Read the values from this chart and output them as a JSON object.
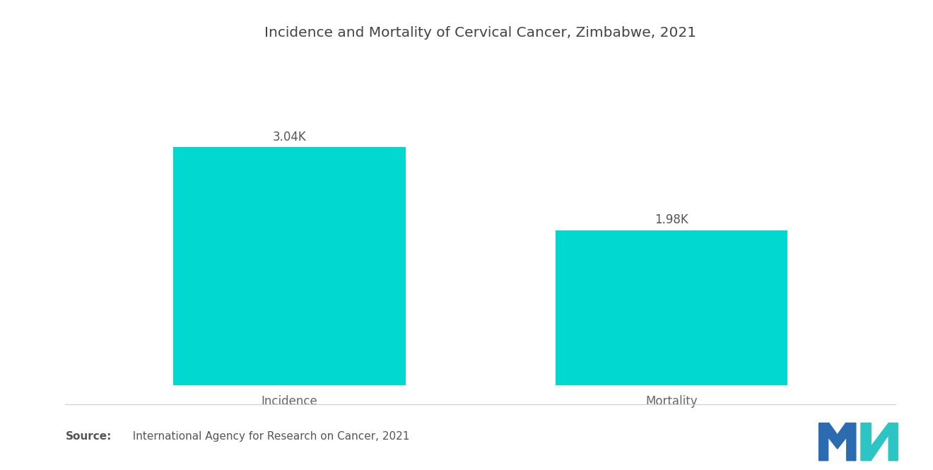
{
  "title": "Incidence and Mortality of Cervical Cancer, Zimbabwe, 2021",
  "categories": [
    "Incidence",
    "Mortality"
  ],
  "values": [
    3040,
    1980
  ],
  "labels": [
    "3.04K",
    "1.98K"
  ],
  "bar_color": "#00D8D0",
  "background_color": "#ffffff",
  "title_fontsize": 14.5,
  "label_fontsize": 12,
  "tick_fontsize": 12,
  "ylim": [
    0,
    4200
  ],
  "bar_positions": [
    0.27,
    0.73
  ],
  "bar_width": 0.28,
  "source_bold": "Source:",
  "source_rest": "  International Agency for Research on Cancer, 2021",
  "logo_blue": "#2B6CB0",
  "logo_teal": "#2DC4C4"
}
